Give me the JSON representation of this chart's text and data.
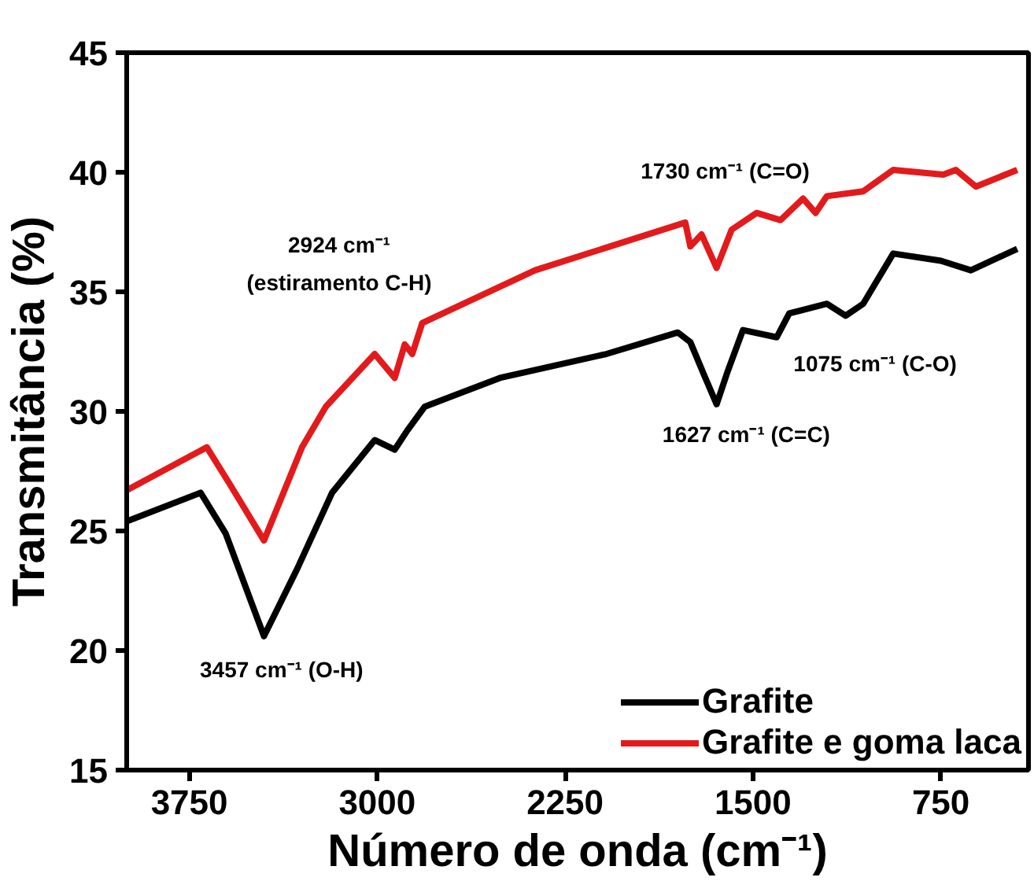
{
  "chart_data": {
    "type": "line",
    "xlabel": "Número de onda (cm⁻¹)",
    "ylabel": "Transmitância (%)",
    "xlim": [
      4000,
      400
    ],
    "ylim": [
      15,
      45
    ],
    "xticks": [
      3750,
      3000,
      2250,
      1500,
      750
    ],
    "yticks": [
      15,
      20,
      25,
      30,
      35,
      40,
      45
    ],
    "grid": false,
    "legend": "bottom right",
    "line_style": "solid",
    "marker": "none",
    "series": [
      {
        "name": "Grafite",
        "color": "#000000",
        "x": [
          4000,
          3705,
          3605,
          3452,
          3320,
          3180,
          3010,
          2930,
          2880,
          2810,
          2510,
          2085,
          1800,
          1750,
          1690,
          1645,
          1600,
          1540,
          1405,
          1355,
          1205,
          1130,
          1060,
          940,
          750,
          630,
          445
        ],
        "values": [
          25.4,
          26.6,
          24.9,
          20.6,
          23.4,
          26.6,
          28.8,
          28.4,
          29.2,
          30.2,
          31.4,
          32.4,
          33.3,
          32.9,
          31.4,
          30.3,
          31.7,
          33.4,
          33.1,
          34.1,
          34.5,
          34.0,
          34.5,
          36.6,
          36.3,
          35.9,
          36.8
        ]
      },
      {
        "name": "Grafite e goma laca",
        "color": "#e31a1c",
        "x": [
          4000,
          3680,
          3585,
          3452,
          3300,
          3205,
          3010,
          2930,
          2890,
          2860,
          2820,
          2370,
          1770,
          1750,
          1705,
          1645,
          1585,
          1485,
          1390,
          1300,
          1250,
          1205,
          1060,
          940,
          740,
          690,
          610,
          445
        ],
        "values": [
          26.7,
          28.5,
          26.9,
          24.6,
          28.5,
          30.2,
          32.4,
          31.4,
          32.8,
          32.4,
          33.7,
          35.9,
          37.9,
          36.9,
          37.4,
          36.0,
          37.6,
          38.3,
          38.0,
          38.9,
          38.3,
          39.0,
          39.2,
          40.1,
          39.9,
          40.1,
          39.4,
          40.1
        ]
      }
    ],
    "annotations": [
      {
        "text": "3457 cm⁻¹ (O-H)",
        "x": 3457,
        "y": 20.6
      },
      "2924 cm⁻¹\n(estiramento C-H)",
      {
        "text": "1730 cm⁻¹ (C=O)",
        "x": 1730,
        "y": 37.9
      },
      {
        "text": "1627 cm⁻¹ (C=C)",
        "x": 1627,
        "y": 30.3
      },
      {
        "text": "1075 cm⁻¹ (C-O)",
        "x": 1075,
        "y": 34.3
      }
    ]
  }
}
